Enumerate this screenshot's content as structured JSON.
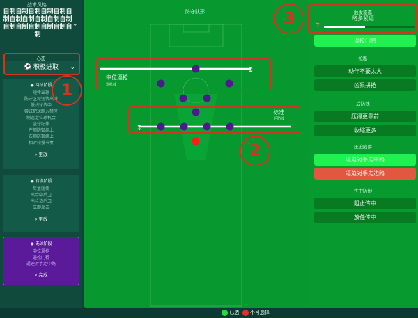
{
  "sidebar": {
    "style_title": "战术风格",
    "style_text": "自制自制自制自制自制自制自制自制自制自制自制自制自制自制自制自制自制",
    "mentality_label": "心态",
    "mentality_value": "积极进取",
    "phases": [
      {
        "title": "持球阶段",
        "items": [
          "短传出球",
          "防守区域短传出球",
          "低线球传中",
          "尝试把球踢入禁区",
          "制造定位球机会",
          "坚守纪律",
          "左侧防御组上",
          "右侧防御组上",
          "相对较慢节奏"
        ],
        "action": "更改"
      },
      {
        "title": "转换阶段",
        "items": [
          "尽量短传",
          "出给中后卫",
          "出给边后卫",
          "立即反击"
        ],
        "action": "更改"
      },
      {
        "title": "无球阶段",
        "items": [
          "中位逼抢",
          "逼抢门将",
          "逼迫对手走中路"
        ],
        "action": "完成"
      }
    ]
  },
  "formation": {
    "title": "防守队形",
    "press_line": {
      "value": "中位逼抢",
      "label": "逼抢线"
    },
    "defensive_line": {
      "value": "标准",
      "label": "后防线"
    }
  },
  "right": {
    "trigger_press": {
      "title": "触发紧逼",
      "value": "略多紧逼",
      "level": 0.45
    },
    "press_gk": "逼抢门将",
    "sections": [
      {
        "title": "抢断",
        "options": [
          {
            "label": "动作不要太大",
            "state": "normal"
          },
          {
            "label": "凶狠拼抢",
            "state": "normal"
          }
        ]
      },
      {
        "title": "后防线",
        "options": [
          {
            "label": "压得更靠前",
            "state": "normal"
          },
          {
            "label": "收缩更多",
            "state": "normal"
          }
        ]
      },
      {
        "title": "压迫陷阱",
        "options": [
          {
            "label": "逼迫对手走中路",
            "state": "selected"
          },
          {
            "label": "逼迫对手走边路",
            "state": "unavailable"
          }
        ]
      },
      {
        "title": "传中防御",
        "options": [
          {
            "label": "阻止传中",
            "state": "normal"
          },
          {
            "label": "放任传中",
            "state": "normal"
          }
        ]
      }
    ]
  },
  "legend": {
    "selected": "已选",
    "unavailable": "不可选择"
  },
  "annotations": [
    "1",
    "2",
    "3"
  ],
  "colors": {
    "selected": "#20f050",
    "unavailable": "#e2573f",
    "player": "#4b1a8c",
    "goalkeeper": "#ff1a1a",
    "annotation": "#d2351f"
  }
}
